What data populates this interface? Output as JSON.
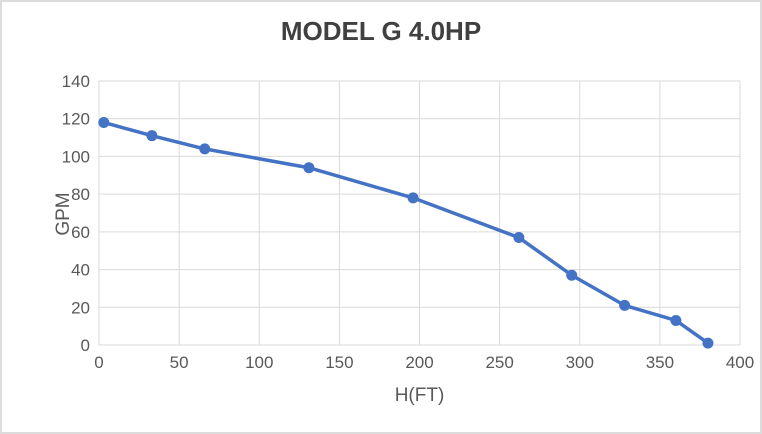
{
  "window": {
    "background": "#FFFFFF",
    "border_color": "#DCDCDC"
  },
  "chart_data": {
    "type": "line",
    "title": "MODEL G 4.0HP",
    "xlabel": "H(FT)",
    "ylabel": "GPM",
    "x": [
      3,
      33,
      66,
      131,
      196,
      262,
      295,
      328,
      360,
      380
    ],
    "values": [
      118,
      111,
      104,
      94,
      78,
      57,
      37,
      21,
      13,
      1
    ],
    "xlim": [
      0,
      400
    ],
    "ylim": [
      0,
      140
    ],
    "xticks": [
      0,
      50,
      100,
      150,
      200,
      250,
      300,
      350,
      400
    ],
    "yticks": [
      0,
      20,
      40,
      60,
      80,
      100,
      120,
      140
    ],
    "grid": true,
    "legend": false,
    "marker": "circle",
    "colors": {
      "series": "#4472C4",
      "gridline": "#D9D9D9",
      "tick_text": "#595959",
      "axis_title_text": "#595959",
      "title_text": "#404040"
    }
  }
}
